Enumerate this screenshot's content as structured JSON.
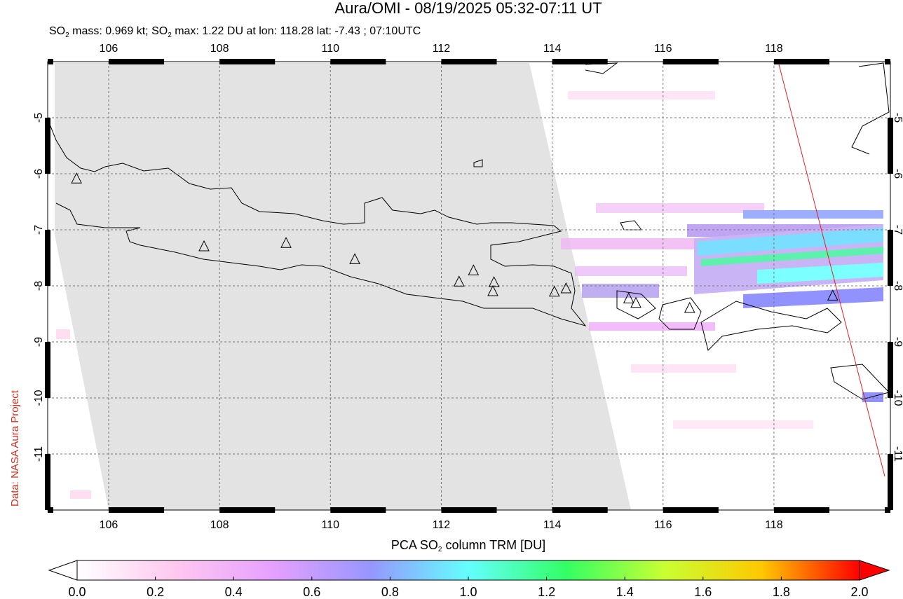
{
  "title": "Aura/OMI - 08/19/2025 05:32-07:11 UT",
  "subtitle": [
    "SO",
    "2",
    " mass: 0.969 kt; SO",
    "2",
    " max: 1.22 DU at lon: 118.28 lat: -7.43 ; 07:10UTC"
  ],
  "credit": "Data: NASA Aura Project",
  "map": {
    "xlim": [
      104.9,
      120.1
    ],
    "ylim": [
      -12,
      -4
    ],
    "xticks": [
      106,
      108,
      110,
      112,
      114,
      116,
      118
    ],
    "yticks": [
      -5,
      -6,
      -7,
      -8,
      -9,
      -10,
      -11
    ],
    "grid": true,
    "volcanoes": [
      {
        "lon": 105.42,
        "lat": -6.09
      },
      {
        "lon": 107.72,
        "lat": -7.3
      },
      {
        "lon": 109.2,
        "lat": -7.24
      },
      {
        "lon": 110.44,
        "lat": -7.53
      },
      {
        "lon": 112.32,
        "lat": -7.93
      },
      {
        "lon": 112.58,
        "lat": -7.73
      },
      {
        "lon": 112.95,
        "lat": -7.94
      },
      {
        "lon": 112.93,
        "lat": -8.1
      },
      {
        "lon": 114.04,
        "lat": -8.11
      },
      {
        "lon": 114.25,
        "lat": -8.05
      },
      {
        "lon": 115.38,
        "lat": -8.23
      },
      {
        "lon": 115.51,
        "lat": -8.31
      },
      {
        "lon": 116.48,
        "lat": -8.4
      },
      {
        "lon": 119.06,
        "lat": -8.18
      }
    ]
  },
  "colorbar": {
    "label": [
      "PCA SO",
      "2",
      " column TRM [DU]"
    ],
    "lim": [
      0,
      2
    ],
    "colors": [
      "#ffffff",
      "#ffc8f0",
      "#e6a0ff",
      "#9696ff",
      "#64ffff",
      "#32ff64",
      "#c8ff32",
      "#ffc800",
      "#ff0000"
    ],
    "ticks": [
      {
        "value": 0,
        "label": "0.0"
      },
      {
        "value": 0.2,
        "label": "0.2"
      },
      {
        "value": 0.4,
        "label": "0.4"
      },
      {
        "value": 0.6,
        "label": "0.6"
      },
      {
        "value": 0.8,
        "label": "0.8"
      },
      {
        "value": 1,
        "label": "1.0"
      },
      {
        "value": 1.2,
        "label": "1.2"
      },
      {
        "value": 1.4,
        "label": "1.4"
      },
      {
        "value": 1.6,
        "label": "1.6"
      },
      {
        "value": 1.8,
        "label": "1.8"
      },
      {
        "value": 2,
        "label": "2.0"
      }
    ]
  }
}
